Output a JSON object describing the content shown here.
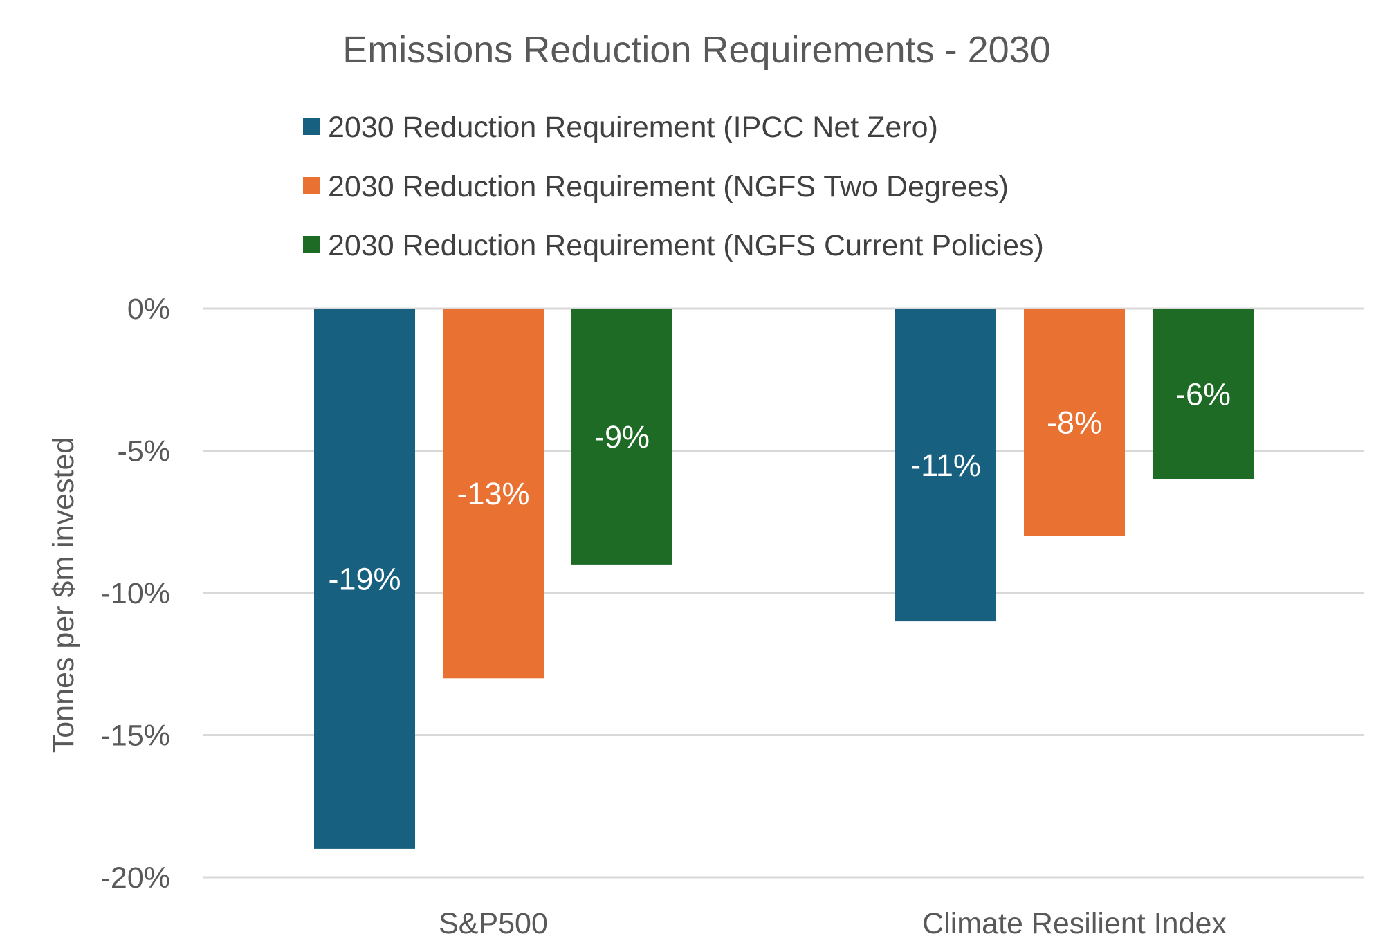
{
  "chart_data": {
    "type": "bar",
    "title": "Emissions Reduction Requirements - 2030",
    "ylabel": "Tonnes per $m invested",
    "xlabel": "",
    "categories": [
      "S&P500",
      "Climate Resilient Index"
    ],
    "series": [
      {
        "name": "2030 Reduction Requirement (IPCC Net Zero)",
        "color": "#17607f",
        "values": [
          -19,
          -11
        ],
        "labels": [
          "-19%",
          "-11%"
        ]
      },
      {
        "name": "2030 Reduction Requirement (NGFS Two Degrees)",
        "color": "#e97132",
        "values": [
          -13,
          -8
        ],
        "labels": [
          "-13%",
          "-8%"
        ]
      },
      {
        "name": "2030 Reduction Requirement (NGFS Current Policies)",
        "color": "#1e6b25",
        "values": [
          -9,
          -6
        ],
        "labels": [
          "-9%",
          "-6%"
        ]
      }
    ],
    "ylim": [
      -20,
      0
    ],
    "yticks": [
      0,
      -5,
      -10,
      -15,
      -20
    ],
    "ytick_labels": [
      "0%",
      "-5%",
      "-10%",
      "-15%",
      "-20%"
    ],
    "grid": true,
    "legend_position": "top"
  }
}
